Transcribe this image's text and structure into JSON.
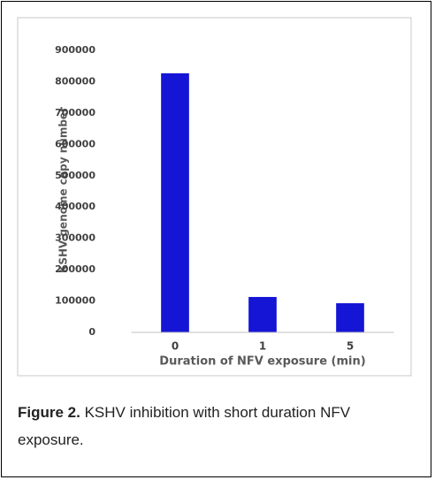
{
  "chart_data": {
    "type": "bar",
    "xlabel": "Duration of NFV exposure (min)",
    "ylabel": "KSHV genome copy number",
    "categories": [
      "0",
      "1",
      "5"
    ],
    "values": [
      827000,
      113000,
      93000
    ],
    "color": "#1515d6",
    "ylim": [
      0,
      900000
    ],
    "yticks": [
      0,
      100000,
      200000,
      300000,
      400000,
      500000,
      600000,
      700000,
      800000,
      900000
    ],
    "grid": false
  },
  "caption": {
    "label": "Figure 2.",
    "text": "KSHV inhibition with short duration NFV exposure."
  }
}
